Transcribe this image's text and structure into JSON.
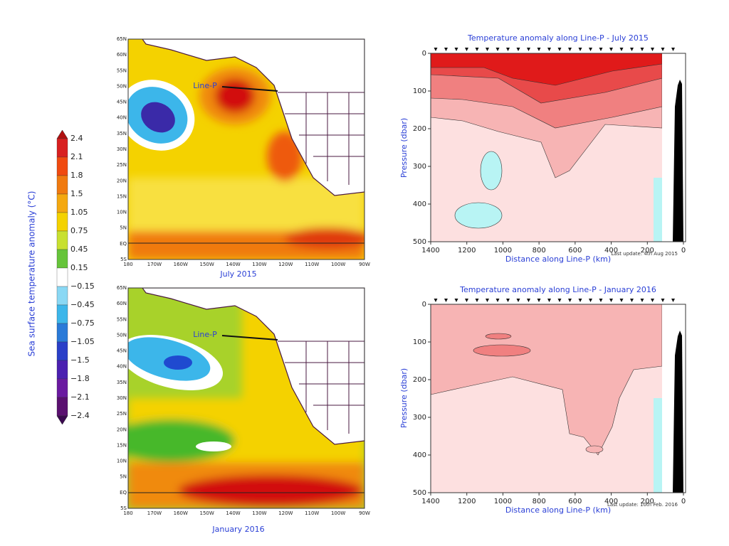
{
  "colorbar": {
    "label": "Sea surface temperature anomaly (°C)",
    "ticks": [
      "2.4",
      "2.1",
      "1.8",
      "1.5",
      "1.05",
      "0.75",
      "0.45",
      "0.15",
      "−0.15",
      "−0.45",
      "−0.75",
      "−1.05",
      "−1.5",
      "−1.8",
      "−2.1",
      "−2.4"
    ]
  },
  "maps": [
    {
      "caption": "July 2015",
      "line_label": "Line-P",
      "lat_labels": [
        "65N",
        "60N",
        "55N",
        "50N",
        "45N",
        "40N",
        "35N",
        "30N",
        "25N",
        "20N",
        "15N",
        "10N",
        "5N",
        "EQ",
        "5S"
      ],
      "lon_labels": [
        "180",
        "170W",
        "160W",
        "150W",
        "140W",
        "130W",
        "120W",
        "110W",
        "100W",
        "90W"
      ]
    },
    {
      "caption": "January 2016",
      "line_label": "Line-P",
      "lat_labels": [
        "65N",
        "60N",
        "55N",
        "50N",
        "45N",
        "40N",
        "35N",
        "30N",
        "25N",
        "20N",
        "15N",
        "10N",
        "5N",
        "EQ",
        "5S"
      ],
      "lon_labels": [
        "180",
        "170W",
        "160W",
        "150W",
        "140W",
        "130W",
        "120W",
        "110W",
        "100W",
        "90W"
      ]
    }
  ],
  "sections": [
    {
      "title": "Temperature anomaly along Line-P - July 2015",
      "x_label": "Distance along Line-P (km)",
      "y_label": "Pressure (dbar)",
      "x_ticks": [
        "1400",
        "1200",
        "1000",
        "800",
        "600",
        "400",
        "200",
        "0"
      ],
      "y_ticks": [
        "0",
        "100",
        "200",
        "300",
        "400",
        "500"
      ],
      "update_note": "Last update: 4th Aug 2015"
    },
    {
      "title": "Temperature anomaly along Line-P - January 2016",
      "x_label": "Distance along Line-P (km)",
      "y_label": "Pressure (dbar)",
      "x_ticks": [
        "1400",
        "1200",
        "1000",
        "800",
        "600",
        "400",
        "200",
        "0"
      ],
      "y_ticks": [
        "0",
        "100",
        "200",
        "300",
        "400",
        "500"
      ],
      "update_note": "Last update: 10th Feb. 2016"
    }
  ]
}
